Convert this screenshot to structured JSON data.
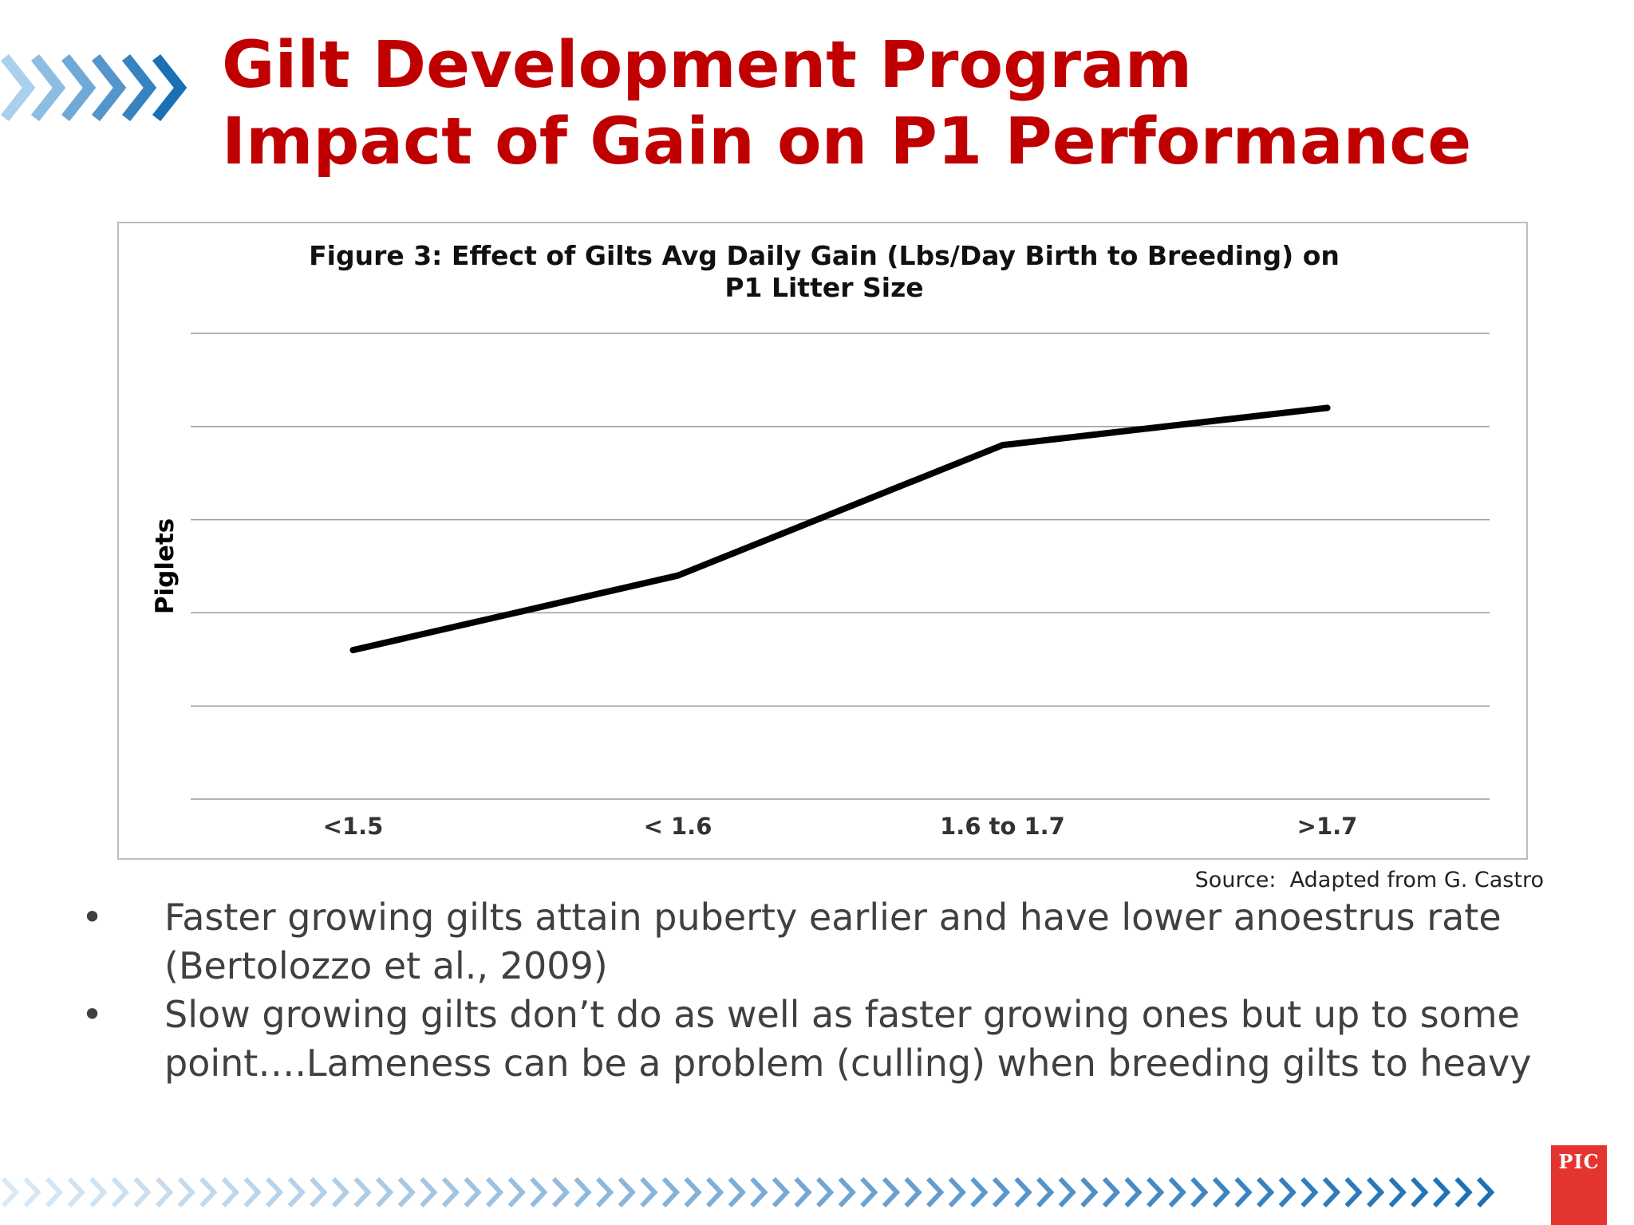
{
  "slide": {
    "title_line1": "Gilt Development Program",
    "title_line2": "Impact of Gain on P1 Performance",
    "source": "Source:  Adapted from G. Castro",
    "bullets": [
      {
        "text": "Faster growing gilts attain puberty earlier and have lower anoestrus rate (Bertolozzo et al., 2009)"
      },
      {
        "text": "Slow growing gilts don’t do as well as faster growing ones but up to some point….Lameness can be a problem (culling) when breeding gilts to heavy"
      }
    ],
    "bullet_char": "•",
    "logo_text": "PIC",
    "colors": {
      "title": "#c00000",
      "chevron_dark": "#1b6fb5",
      "chevron_light": "#a9d0ec",
      "logo": "#e3342f"
    }
  },
  "chart_data": {
    "type": "line",
    "title_lines": [
      "Figure 3: Effect of Gilts Avg Daily Gain  (Lbs/Day Birth to Breeding) on",
      "P1 Litter Size"
    ],
    "categories": [
      "<1.5",
      "< 1.6",
      "1.6 to 1.7",
      ">1.7"
    ],
    "series": [
      {
        "values": [
          1.6,
          2.4,
          3.8,
          4.2
        ]
      }
    ],
    "ylabel": "Piglets",
    "xlabel": "",
    "ylim": [
      0,
      5
    ],
    "gridlines": 6,
    "show_y_ticks": false,
    "grid": true,
    "legend": "none",
    "line_color": "#000000"
  }
}
